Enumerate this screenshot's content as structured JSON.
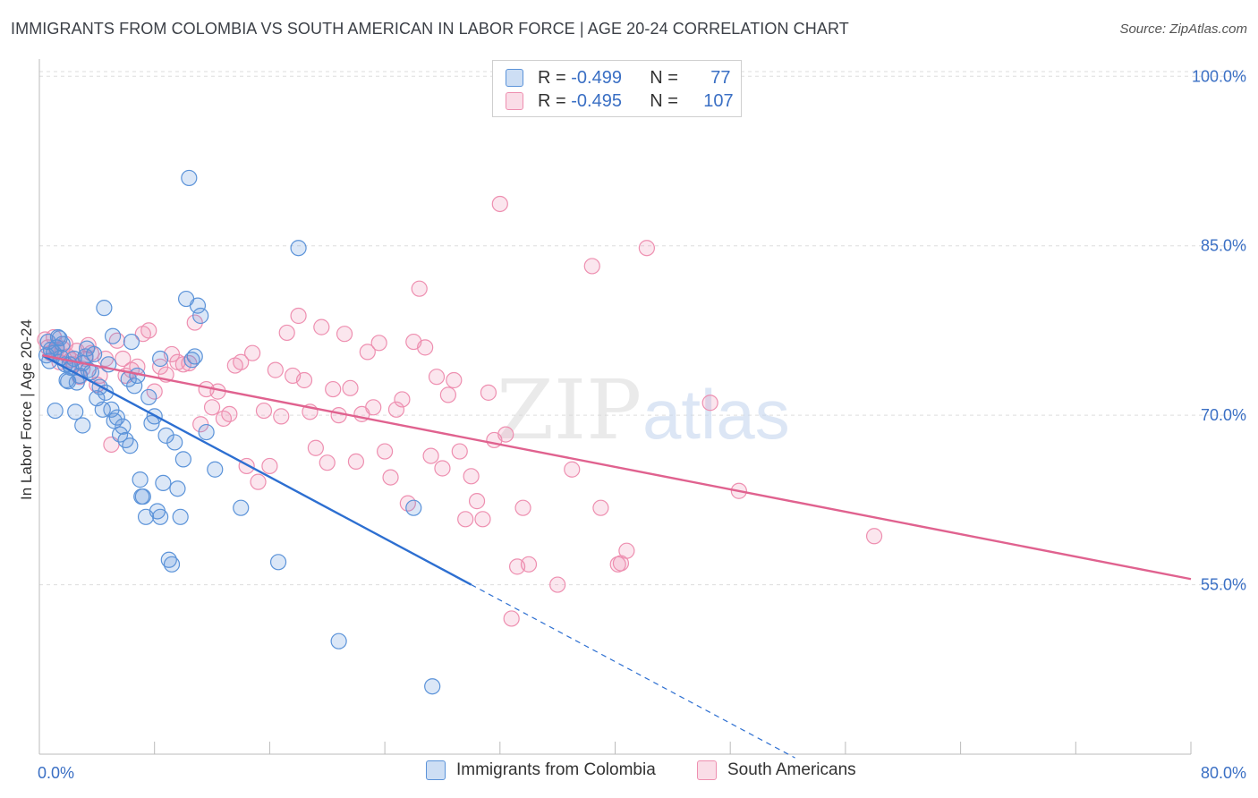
{
  "title": "IMMIGRANTS FROM COLOMBIA VS SOUTH AMERICAN IN LABOR FORCE | AGE 20-24 CORRELATION CHART",
  "source": "Source: ZipAtlas.com",
  "watermark": {
    "zip": "ZIP",
    "atlas": "atlas"
  },
  "legend": {
    "series1": {
      "r_label": "R = ",
      "r_value": "-0.499",
      "n_label": "N = ",
      "n_value": "77"
    },
    "series2": {
      "r_label": "R = ",
      "r_value": "-0.495",
      "n_label": "N = ",
      "n_value": "107"
    }
  },
  "colors": {
    "blue": "#5b93d9",
    "blue_fill": "rgba(91,147,217,0.22)",
    "blue_line": "#2d6fd1",
    "pink": "#ee8fb0",
    "pink_fill": "rgba(238,143,176,0.22)",
    "pink_line": "#e0628f"
  },
  "chart_data": {
    "type": "scatter",
    "title": "IMMIGRANTS FROM COLOMBIA VS SOUTH AMERICAN IN LABOR FORCE | AGE 20-24 CORRELATION CHART",
    "xlabel": "",
    "ylabel": "In Labor Force | Age 20-24",
    "xlim": [
      0,
      80
    ],
    "ylim": [
      40,
      102
    ],
    "x_tick_labels": [
      "0.0%",
      "80.0%"
    ],
    "y_ticks": [
      55,
      70,
      85,
      100
    ],
    "y_tick_labels": [
      "55.0%",
      "70.0%",
      "85.0%",
      "100.0%"
    ],
    "series": [
      {
        "name": "Immigrants from Colombia",
        "color": "#5b93d9",
        "trend": {
          "x0": 0.2,
          "y0": 75.3,
          "x1": 30,
          "y1": 55.0,
          "dashed_to_x": 52.5
        },
        "points": [
          [
            0.5,
            75.3
          ],
          [
            0.6,
            76.5
          ],
          [
            0.7,
            74.8
          ],
          [
            1.0,
            75.5
          ],
          [
            1.2,
            76.0
          ],
          [
            1.4,
            76.8
          ],
          [
            1.5,
            75.1
          ],
          [
            1.6,
            76.3
          ],
          [
            1.8,
            74.5
          ],
          [
            2.0,
            73.0
          ],
          [
            2.2,
            74.2
          ],
          [
            2.4,
            75.0
          ],
          [
            2.6,
            72.9
          ],
          [
            2.8,
            73.5
          ],
          [
            3.0,
            74.6
          ],
          [
            3.2,
            75.2
          ],
          [
            3.4,
            74.0
          ],
          [
            3.6,
            73.8
          ],
          [
            3.8,
            75.4
          ],
          [
            4.0,
            71.5
          ],
          [
            4.2,
            72.5
          ],
          [
            4.4,
            70.5
          ],
          [
            4.6,
            72.0
          ],
          [
            4.8,
            74.5
          ],
          [
            5.0,
            70.5
          ],
          [
            5.2,
            69.5
          ],
          [
            5.4,
            69.8
          ],
          [
            5.6,
            68.3
          ],
          [
            5.8,
            69.0
          ],
          [
            6.0,
            67.8
          ],
          [
            6.2,
            73.2
          ],
          [
            6.4,
            76.5
          ],
          [
            6.6,
            72.6
          ],
          [
            6.8,
            73.5
          ],
          [
            7.0,
            64.3
          ],
          [
            7.2,
            62.8
          ],
          [
            7.4,
            61.0
          ],
          [
            7.6,
            71.6
          ],
          [
            7.8,
            69.3
          ],
          [
            8.0,
            69.9
          ],
          [
            8.2,
            61.5
          ],
          [
            8.4,
            75.0
          ],
          [
            8.6,
            64.0
          ],
          [
            8.8,
            68.2
          ],
          [
            9.0,
            57.2
          ],
          [
            9.2,
            56.8
          ],
          [
            9.4,
            67.6
          ],
          [
            9.6,
            63.5
          ],
          [
            9.8,
            61.0
          ],
          [
            10.0,
            66.1
          ],
          [
            10.2,
            80.3
          ],
          [
            10.4,
            91.0
          ],
          [
            10.6,
            74.9
          ],
          [
            10.8,
            75.2
          ],
          [
            11.0,
            79.7
          ],
          [
            11.2,
            78.8
          ],
          [
            11.6,
            68.5
          ],
          [
            12.2,
            65.2
          ],
          [
            14.0,
            61.8
          ],
          [
            16.6,
            57.0
          ],
          [
            18.0,
            84.8
          ],
          [
            20.8,
            50.0
          ],
          [
            26.0,
            61.8
          ],
          [
            27.3,
            46.0
          ],
          [
            2.5,
            70.3
          ],
          [
            3.0,
            69.1
          ],
          [
            1.1,
            70.4
          ],
          [
            4.5,
            79.5
          ],
          [
            5.1,
            77.0
          ],
          [
            6.3,
            67.3
          ],
          [
            7.1,
            62.8
          ],
          [
            8.4,
            61.0
          ],
          [
            1.3,
            76.9
          ],
          [
            1.9,
            73.1
          ],
          [
            2.1,
            74.5
          ],
          [
            0.8,
            75.8
          ],
          [
            3.3,
            75.9
          ]
        ]
      },
      {
        "name": "South Americans",
        "color": "#ee8fb0",
        "trend": {
          "x0": 0.2,
          "y0": 75.3,
          "x1": 80,
          "y1": 55.5
        },
        "points": [
          [
            0.4,
            76.7
          ],
          [
            0.6,
            76.0
          ],
          [
            0.8,
            75.5
          ],
          [
            1.0,
            76.9
          ],
          [
            1.2,
            75.8
          ],
          [
            1.4,
            74.7
          ],
          [
            1.6,
            75.9
          ],
          [
            1.8,
            76.3
          ],
          [
            2.0,
            75.2
          ],
          [
            2.2,
            74.9
          ],
          [
            2.4,
            74.5
          ],
          [
            2.6,
            75.7
          ],
          [
            2.8,
            73.4
          ],
          [
            3.0,
            74.1
          ],
          [
            3.2,
            75.0
          ],
          [
            3.4,
            76.2
          ],
          [
            3.6,
            75.5
          ],
          [
            4.0,
            72.7
          ],
          [
            4.2,
            73.5
          ],
          [
            4.6,
            75.0
          ],
          [
            5.0,
            67.4
          ],
          [
            5.4,
            76.6
          ],
          [
            5.8,
            75.0
          ],
          [
            6.0,
            73.5
          ],
          [
            6.4,
            74.0
          ],
          [
            6.8,
            74.3
          ],
          [
            7.2,
            77.2
          ],
          [
            7.6,
            77.5
          ],
          [
            8.0,
            72.1
          ],
          [
            8.4,
            74.3
          ],
          [
            8.8,
            73.6
          ],
          [
            9.2,
            75.4
          ],
          [
            9.6,
            74.7
          ],
          [
            10.0,
            74.5
          ],
          [
            10.4,
            74.6
          ],
          [
            10.8,
            78.2
          ],
          [
            11.2,
            69.2
          ],
          [
            11.6,
            72.3
          ],
          [
            12.0,
            70.7
          ],
          [
            12.4,
            72.1
          ],
          [
            12.8,
            69.7
          ],
          [
            13.2,
            70.1
          ],
          [
            13.6,
            74.4
          ],
          [
            14.0,
            74.7
          ],
          [
            14.4,
            65.5
          ],
          [
            14.8,
            75.5
          ],
          [
            15.2,
            64.1
          ],
          [
            15.6,
            70.4
          ],
          [
            16.0,
            65.5
          ],
          [
            16.4,
            74.0
          ],
          [
            16.8,
            69.9
          ],
          [
            17.2,
            77.3
          ],
          [
            17.6,
            73.5
          ],
          [
            18.0,
            78.8
          ],
          [
            18.4,
            73.1
          ],
          [
            18.8,
            70.3
          ],
          [
            19.2,
            67.1
          ],
          [
            19.6,
            77.8
          ],
          [
            20.0,
            65.8
          ],
          [
            20.4,
            72.3
          ],
          [
            20.8,
            70.0
          ],
          [
            21.2,
            77.2
          ],
          [
            21.6,
            72.4
          ],
          [
            22.0,
            65.9
          ],
          [
            22.4,
            70.1
          ],
          [
            22.8,
            75.6
          ],
          [
            23.2,
            70.7
          ],
          [
            23.6,
            76.4
          ],
          [
            24.0,
            66.8
          ],
          [
            24.4,
            64.5
          ],
          [
            24.8,
            70.5
          ],
          [
            25.2,
            71.4
          ],
          [
            25.6,
            62.2
          ],
          [
            26.0,
            76.5
          ],
          [
            26.4,
            81.2
          ],
          [
            26.8,
            76.0
          ],
          [
            27.2,
            66.4
          ],
          [
            27.6,
            73.4
          ],
          [
            28.0,
            65.3
          ],
          [
            28.4,
            71.8
          ],
          [
            28.8,
            73.1
          ],
          [
            29.2,
            66.8
          ],
          [
            29.6,
            60.8
          ],
          [
            30.0,
            64.6
          ],
          [
            30.4,
            62.4
          ],
          [
            30.8,
            60.8
          ],
          [
            31.2,
            72.0
          ],
          [
            31.6,
            67.8
          ],
          [
            32.0,
            88.7
          ],
          [
            32.4,
            68.3
          ],
          [
            32.8,
            52.0
          ],
          [
            33.2,
            56.6
          ],
          [
            33.6,
            61.8
          ],
          [
            34.0,
            56.8
          ],
          [
            36.0,
            55.0
          ],
          [
            37.0,
            65.2
          ],
          [
            38.4,
            83.2
          ],
          [
            39.0,
            61.8
          ],
          [
            40.2,
            56.8
          ],
          [
            40.4,
            56.9
          ],
          [
            40.8,
            58.0
          ],
          [
            42.2,
            84.8
          ],
          [
            46.6,
            71.1
          ],
          [
            48.6,
            63.3
          ],
          [
            58.0,
            59.3
          ]
        ]
      }
    ]
  }
}
